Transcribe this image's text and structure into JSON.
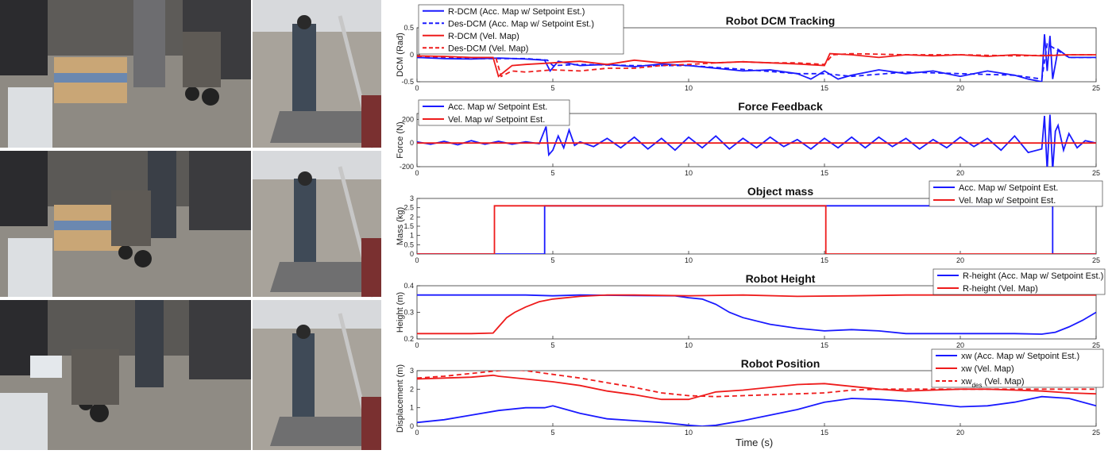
{
  "figure": {
    "xlabel": "Time (s)"
  },
  "photos": [
    {
      "row": 1,
      "left": "robot-lifting-box-lab",
      "right": "operator-on-platform-teleoperating"
    },
    {
      "row": 2,
      "left": "robot-carrying-box-lab",
      "right": "operator-on-platform-teleoperating"
    },
    {
      "row": 3,
      "left": "robot-placing-box-lab",
      "right": "operator-on-platform-teleoperating"
    }
  ],
  "colors": {
    "blue": "#1a1aff",
    "red": "#ee1c1c"
  },
  "chart_data": [
    {
      "type": "line",
      "title": "Robot DCM Tracking",
      "ylabel": "DCM (Rad)",
      "xlim": [
        0,
        25
      ],
      "ylim": [
        -0.5,
        0.5
      ],
      "xticks": [
        0,
        5,
        10,
        15,
        20,
        25
      ],
      "yticks": [
        -0.5,
        0,
        0.5
      ],
      "legend": "top-left",
      "series": [
        {
          "name": "R-DCM (Acc. Map w/ Setpoint Est.)",
          "color": "#1a1aff",
          "dash": "solid",
          "x": [
            0,
            1,
            2,
            3,
            4,
            4.7,
            4.9,
            5.2,
            6,
            7,
            8,
            9,
            10,
            11,
            12,
            13,
            14,
            14.5,
            15,
            15.5,
            16,
            17,
            18,
            19,
            20,
            21,
            22,
            22.5,
            23,
            23.1,
            23.2,
            23.3,
            23.4,
            23.6,
            24,
            25
          ],
          "y": [
            -0.05,
            -0.07,
            -0.08,
            -0.06,
            -0.08,
            -0.1,
            -0.3,
            -0.12,
            -0.2,
            -0.18,
            -0.22,
            -0.17,
            -0.2,
            -0.25,
            -0.3,
            -0.28,
            -0.35,
            -0.45,
            -0.3,
            -0.45,
            -0.38,
            -0.28,
            -0.35,
            -0.3,
            -0.4,
            -0.3,
            -0.38,
            -0.45,
            -0.5,
            0.38,
            -0.3,
            0.35,
            -0.45,
            0.1,
            -0.05,
            -0.05
          ]
        },
        {
          "name": "Des-DCM (Acc. Map w/ Setpoint Est.)",
          "color": "#1a1aff",
          "dash": "dash",
          "x": [
            0,
            2,
            4,
            4.8,
            5,
            6,
            8,
            10,
            12,
            14,
            15,
            16,
            18,
            20,
            22,
            23,
            23.2,
            24,
            25
          ],
          "y": [
            -0.05,
            -0.07,
            -0.07,
            -0.1,
            -0.2,
            -0.18,
            -0.2,
            -0.2,
            -0.27,
            -0.35,
            -0.35,
            -0.4,
            -0.32,
            -0.35,
            -0.38,
            -0.45,
            0.2,
            -0.05,
            -0.05
          ]
        },
        {
          "name": "R-DCM (Vel. Map)",
          "color": "#ee1c1c",
          "dash": "solid",
          "x": [
            0,
            1,
            2,
            2.8,
            3,
            3.2,
            3.5,
            4,
            5,
            6,
            7,
            8,
            9,
            10,
            11,
            12,
            13,
            14,
            15,
            15.2,
            16,
            17,
            18,
            19,
            20,
            21,
            22,
            23,
            24,
            25
          ],
          "y": [
            -0.02,
            -0.03,
            -0.05,
            -0.05,
            -0.4,
            -0.32,
            -0.2,
            -0.18,
            -0.15,
            -0.12,
            -0.18,
            -0.1,
            -0.15,
            -0.12,
            -0.15,
            -0.13,
            -0.15,
            -0.17,
            -0.2,
            0.02,
            0.0,
            -0.05,
            0.0,
            -0.02,
            0.0,
            -0.03,
            0.0,
            -0.02,
            0.0,
            0.0
          ]
        },
        {
          "name": "Des-DCM (Vel. Map)",
          "color": "#ee1c1c",
          "dash": "dash",
          "x": [
            0,
            2,
            2.9,
            3.1,
            3.5,
            4,
            5,
            6,
            7,
            8,
            9,
            10,
            11,
            12,
            13,
            14,
            15,
            15.3,
            16,
            18,
            20,
            22,
            24,
            25
          ],
          "y": [
            -0.03,
            -0.05,
            -0.05,
            -0.4,
            -0.3,
            -0.32,
            -0.28,
            -0.3,
            -0.25,
            -0.25,
            -0.2,
            -0.18,
            -0.15,
            -0.13,
            -0.15,
            -0.15,
            -0.18,
            0.0,
            0.02,
            0.0,
            0.0,
            -0.02,
            0.0,
            0.0
          ]
        }
      ]
    },
    {
      "type": "line",
      "title": "Force Feedback",
      "ylabel": "Force (N)",
      "xlim": [
        0,
        25
      ],
      "ylim": [
        -200,
        250
      ],
      "xticks": [
        0,
        5,
        10,
        15,
        20,
        25
      ],
      "yticks": [
        -200,
        0,
        200
      ],
      "legend": "top-left",
      "series": [
        {
          "name": "Acc. Map w/ Setpoint Est.",
          "color": "#1a1aff",
          "dash": "solid",
          "x": [
            0,
            0.5,
            1,
            1.5,
            2,
            2.5,
            3,
            3.5,
            4,
            4.5,
            4.75,
            4.85,
            5,
            5.2,
            5.4,
            5.6,
            5.8,
            6,
            6.5,
            7,
            7.5,
            8,
            8.5,
            9,
            9.5,
            10,
            10.5,
            11,
            11.5,
            12,
            12.5,
            13,
            13.5,
            14,
            14.5,
            15,
            15.5,
            16,
            16.5,
            17,
            17.5,
            18,
            18.5,
            19,
            19.5,
            20,
            20.5,
            21,
            21.5,
            22,
            22.5,
            23,
            23.1,
            23.2,
            23.3,
            23.4,
            23.5,
            23.6,
            23.8,
            24,
            24.3,
            24.6,
            25
          ],
          "y": [
            10,
            -10,
            15,
            -15,
            20,
            -10,
            15,
            -10,
            10,
            -5,
            140,
            -100,
            -60,
            60,
            -40,
            110,
            -20,
            10,
            -30,
            40,
            -40,
            50,
            -50,
            40,
            -60,
            50,
            -40,
            60,
            -50,
            40,
            -40,
            50,
            -30,
            30,
            -50,
            40,
            -40,
            50,
            -40,
            50,
            -30,
            40,
            -50,
            30,
            -40,
            50,
            -30,
            40,
            -60,
            60,
            -80,
            -50,
            230,
            -230,
            240,
            -230,
            100,
            150,
            -60,
            80,
            -40,
            20,
            0
          ]
        },
        {
          "name": "Vel. Map w/ Setpoint Est.",
          "color": "#ee1c1c",
          "dash": "solid",
          "x": [
            0,
            2,
            4,
            6,
            8,
            10,
            12,
            14,
            16,
            18,
            20,
            22,
            24,
            25
          ],
          "y": [
            0,
            0,
            0,
            0,
            0,
            0,
            0,
            0,
            0,
            0,
            0,
            0,
            0,
            0
          ]
        }
      ]
    },
    {
      "type": "line",
      "title": "Object mass",
      "ylabel": "Mass (kg)",
      "xlim": [
        0,
        25
      ],
      "ylim": [
        0,
        3
      ],
      "xticks": [
        0,
        5,
        10,
        15,
        20,
        25
      ],
      "yticks": [
        0,
        0.5,
        1,
        1.5,
        2,
        2.5,
        3
      ],
      "legend": "top-right",
      "series": [
        {
          "name": "Acc. Map w/ Setpoint Est.",
          "color": "#1a1aff",
          "dash": "solid",
          "x": [
            0,
            4.7,
            4.7,
            23.4,
            23.4,
            25
          ],
          "y": [
            0,
            0,
            2.6,
            2.6,
            0,
            0
          ]
        },
        {
          "name": "Vel. Map w/ Setpoint Est.",
          "color": "#ee1c1c",
          "dash": "solid",
          "x": [
            0,
            2.85,
            2.85,
            15.05,
            15.05,
            25
          ],
          "y": [
            0,
            0,
            2.6,
            2.6,
            0,
            0
          ]
        }
      ]
    },
    {
      "type": "line",
      "title": "Robot Height",
      "ylabel": "Height (m)",
      "xlim": [
        0,
        25
      ],
      "ylim": [
        0.2,
        0.4
      ],
      "xticks": [
        0,
        5,
        10,
        15,
        20,
        25
      ],
      "yticks": [
        0.2,
        0.3,
        0.4
      ],
      "legend": "top-right",
      "series": [
        {
          "name": "R-height (Acc. Map w/ Setpoint Est.)",
          "color": "#1a1aff",
          "dash": "solid",
          "x": [
            0,
            2,
            4,
            5,
            6,
            8,
            9.5,
            10,
            10.5,
            11,
            11.5,
            12,
            13,
            14,
            15,
            16,
            17,
            18,
            20,
            22,
            23,
            23.5,
            24,
            24.5,
            25
          ],
          "y": [
            0.365,
            0.365,
            0.365,
            0.362,
            0.365,
            0.363,
            0.362,
            0.355,
            0.35,
            0.33,
            0.3,
            0.28,
            0.255,
            0.24,
            0.23,
            0.235,
            0.23,
            0.22,
            0.22,
            0.22,
            0.218,
            0.225,
            0.245,
            0.27,
            0.3
          ]
        },
        {
          "name": "R-height (Vel. Map)",
          "color": "#ee1c1c",
          "dash": "solid",
          "x": [
            0,
            2,
            2.8,
            3,
            3.3,
            3.6,
            4,
            4.5,
            5,
            6,
            7,
            8,
            10,
            12,
            14,
            16,
            18,
            20,
            22,
            24,
            25
          ],
          "y": [
            0.22,
            0.22,
            0.222,
            0.245,
            0.28,
            0.3,
            0.32,
            0.34,
            0.35,
            0.36,
            0.365,
            0.365,
            0.362,
            0.365,
            0.36,
            0.362,
            0.365,
            0.365,
            0.365,
            0.365,
            0.365
          ]
        }
      ]
    },
    {
      "type": "line",
      "title": "Robot Position",
      "ylabel": "Displacement (m)",
      "xlim": [
        0,
        25
      ],
      "ylim": [
        0,
        3
      ],
      "xticks": [
        0,
        5,
        10,
        15,
        20,
        25
      ],
      "yticks": [
        0,
        1,
        2,
        3
      ],
      "legend": "top-right",
      "series": [
        {
          "name": "xw (Acc. Map w/ Setpoint Est.)",
          "color": "#1a1aff",
          "dash": "solid",
          "x": [
            0,
            1,
            2,
            3,
            4,
            4.7,
            5,
            5.5,
            6,
            7,
            8,
            9,
            10,
            10.5,
            11,
            12,
            13,
            14,
            15,
            16,
            17,
            18,
            19,
            20,
            21,
            22,
            23,
            24,
            25
          ],
          "y": [
            0.2,
            0.35,
            0.6,
            0.85,
            1.0,
            1.0,
            1.1,
            0.9,
            0.7,
            0.4,
            0.3,
            0.2,
            0.05,
            0.0,
            0.05,
            0.3,
            0.6,
            0.9,
            1.3,
            1.5,
            1.45,
            1.35,
            1.2,
            1.05,
            1.1,
            1.3,
            1.6,
            1.5,
            1.1
          ]
        },
        {
          "name": "xw (Vel. Map)",
          "color": "#ee1c1c",
          "dash": "solid",
          "x": [
            0,
            1,
            2,
            2.8,
            3,
            4,
            5,
            6,
            7,
            8,
            9,
            10,
            11,
            12,
            13,
            14,
            15,
            16,
            17,
            18,
            19,
            20,
            21,
            22,
            23,
            24,
            25
          ],
          "y": [
            2.55,
            2.6,
            2.65,
            2.75,
            2.7,
            2.55,
            2.4,
            2.2,
            1.9,
            1.7,
            1.45,
            1.45,
            1.85,
            1.95,
            2.1,
            2.25,
            2.3,
            2.15,
            2.0,
            1.9,
            1.95,
            2.0,
            2.0,
            1.95,
            1.9,
            1.8,
            1.75
          ]
        },
        {
          "name": "xw des (Vel. Map)",
          "label_main": "xw",
          "label_sub": "des",
          "label_rest": " (Vel. Map)",
          "color": "#ee1c1c",
          "dash": "dash",
          "x": [
            0,
            1,
            2,
            3,
            3.5,
            4,
            5,
            6,
            7,
            8,
            9,
            10,
            11,
            12,
            13,
            14,
            15,
            16,
            17,
            18,
            19,
            20,
            21,
            22,
            23,
            24,
            25
          ],
          "y": [
            2.6,
            2.7,
            2.85,
            3.0,
            3.05,
            3.0,
            2.8,
            2.6,
            2.35,
            2.1,
            1.8,
            1.65,
            1.6,
            1.65,
            1.7,
            1.75,
            1.8,
            1.95,
            2.0,
            2.0,
            2.0,
            2.0,
            2.0,
            2.0,
            2.0,
            2.0,
            2.0
          ]
        }
      ]
    }
  ]
}
